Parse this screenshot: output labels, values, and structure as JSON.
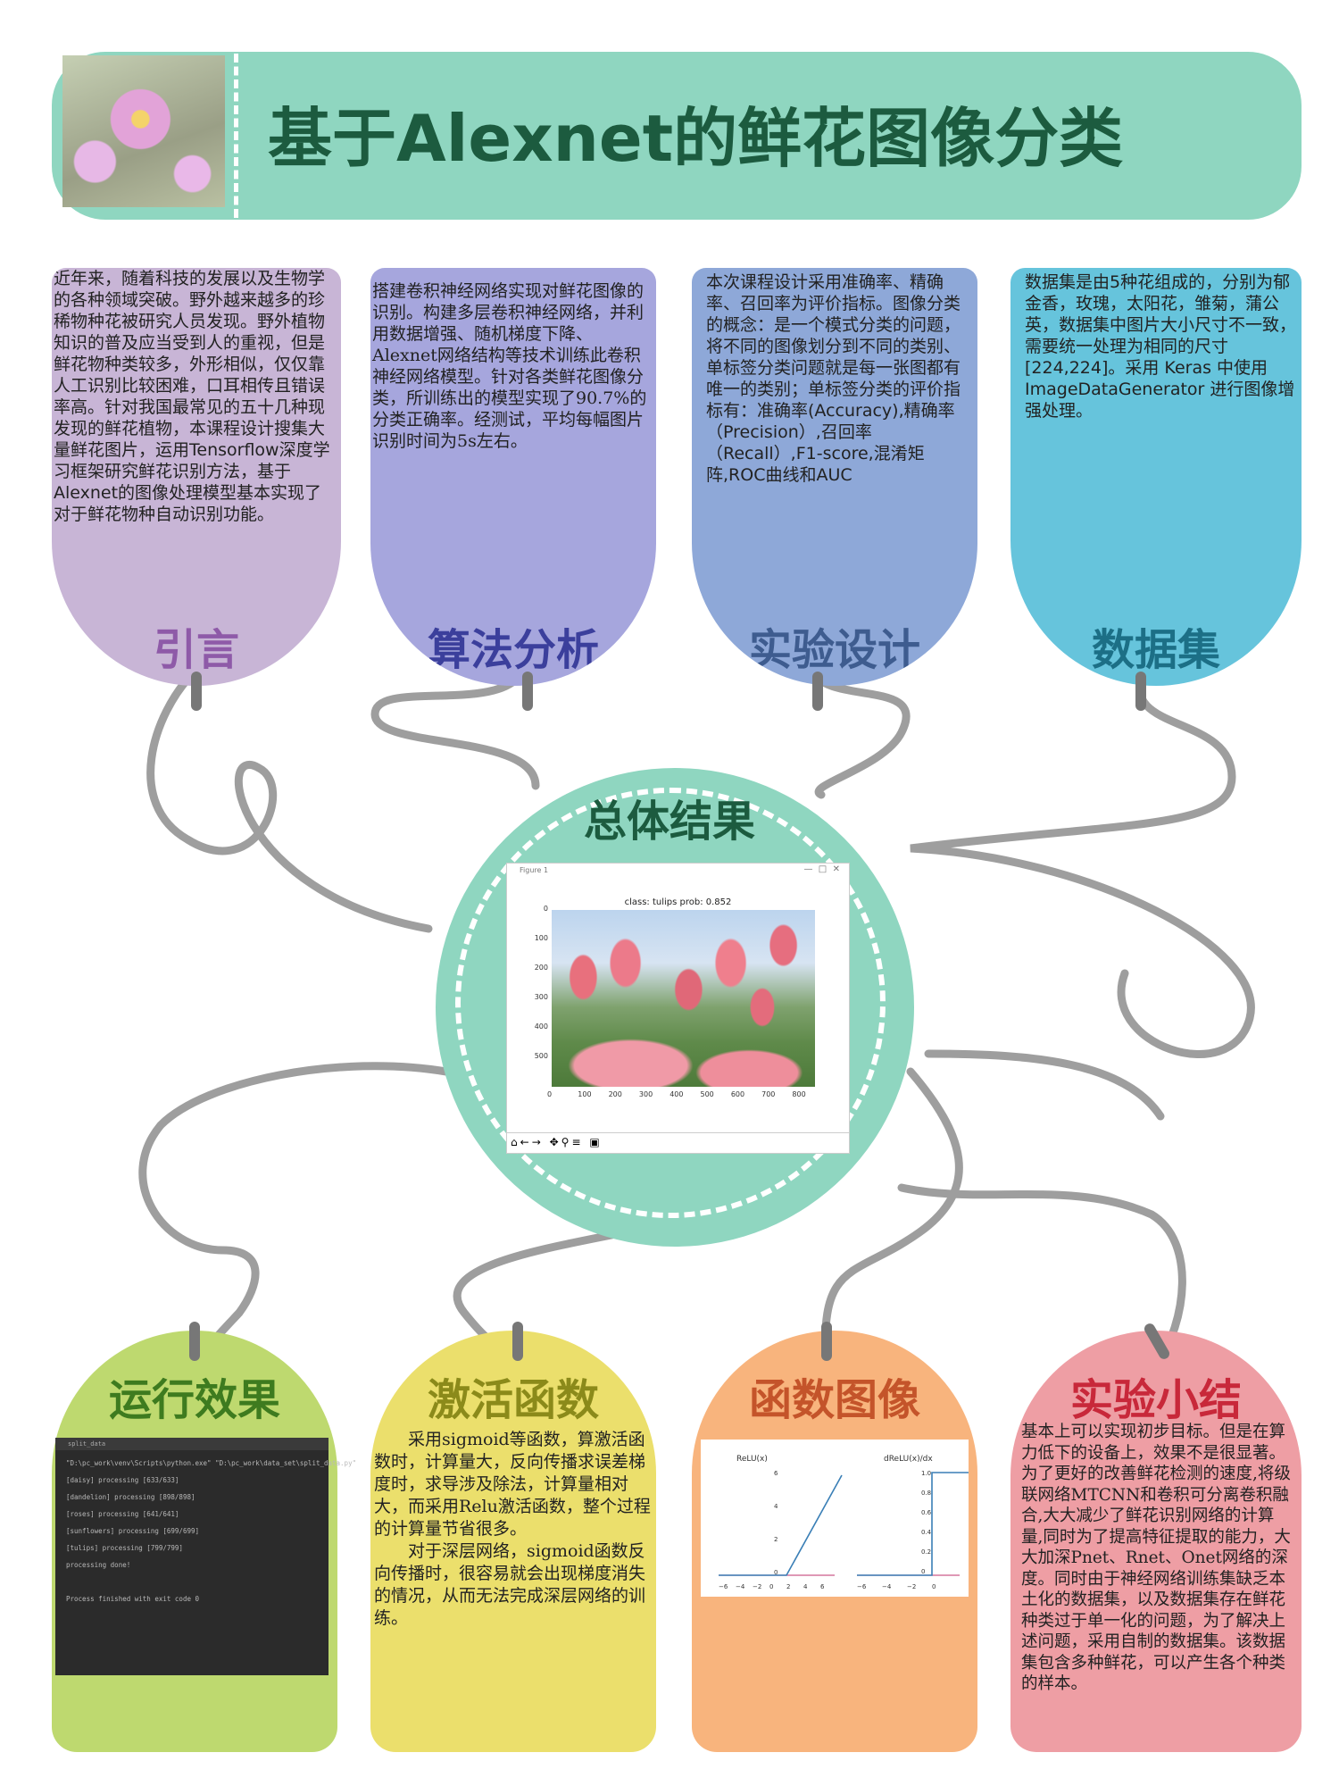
{
  "header": {
    "title": "基于Alexnet的鲜花图像分类"
  },
  "cards_top": [
    {
      "title": "引言",
      "text": "近年来，随着科技的发展以及生物学的各种领域突破。野外越来越多的珍稀物种花被研究人员发现。野外植物知识的普及应当受到人的重视，但是鲜花物种类较多，外形相似，仅仅靠人工识别比较困难，口耳相传且错误率高。针对我国最常见的五十几种现发现的鲜花植物，本课程设计搜集大量鲜花图片，运用Tensorflow深度学习框架研究鲜花识别方法，基于Alexnet的图像处理模型基本实现了对于鲜花物种自动识别功能。"
    },
    {
      "title": "算法分析",
      "text": "搭建卷积神经网络实现对鲜花图像的识别。构建多层卷积神经网络，并利用数据增强、随机梯度下降、Alexnet网络结构等技术训练此卷积神经网络模型。针对各类鲜花图像分类，所训练出的模型实现了90.7%的分类正确率。经测试，平均每幅图片识别时间为5s左右。"
    },
    {
      "title": "实验设计",
      "text": "本次课程设计采用准确率、精确率、召回率为评价指标。图像分类的概念：是一个模式分类的问题，将不同的图像划分到不同的类别、单标签分类问题就是每一张图都有唯一的类别；单标签分类的评价指标有：准确率(Accuracy),精确率（Precision）,召回率（Recall）,F1-score,混淆矩阵,ROC曲线和AUC"
    },
    {
      "title": "数据集",
      "text": "数据集是由5种花组成的，分别为郁金香，玫瑰，太阳花，雏菊，蒲公英，数据集中图片大小尺寸不一致，需要统一处理为相同的尺寸[224,224]。采用 Keras 中使用ImageDataGenerator 进行图像增强处理。"
    }
  ],
  "center": {
    "title": "总体结果",
    "figure_window": "Figure 1",
    "plot_title": "class: tulips   prob: 0.852",
    "y_ticks": [
      "0",
      "100",
      "200",
      "300",
      "400",
      "500"
    ],
    "x_ticks": [
      "0",
      "100",
      "200",
      "300",
      "400",
      "500",
      "600",
      "700",
      "800"
    ]
  },
  "cards_bottom": [
    {
      "title": "运行效果",
      "terminal": {
        "title": "split_data",
        "lines": [
          "\"D:\\pc_work\\venv\\Scripts\\python.exe\" \"D:\\pc_work\\data_set\\split_data.py\"",
          "[daisy] processing [633/633]",
          "[dandelion] processing [898/898]",
          "[roses] processing [641/641]",
          "[sunflowers] processing [699/699]",
          "[tulips] processing [799/799]",
          "processing done!",
          "",
          "Process finished with exit code 0"
        ]
      }
    },
    {
      "title": "激活函数",
      "paragraphs": [
        "采用sigmoid等函数，算激活函数时，计算量大，反向传播求误差梯度时，求导涉及除法，计算量相对大，而采用Relu激活函数，整个过程的计算量节省很多。",
        "对于深层网络，sigmoid函数反向传播时，很容易就会出现梯度消失的情况，从而无法完成深层网络的训练。"
      ]
    },
    {
      "title": "函数图像",
      "plot_left": {
        "title": "ReLU(x)",
        "y_ticks": [
          "6",
          "4",
          "2",
          "0"
        ],
        "x_ticks": [
          "−6",
          "−4",
          "−2",
          "0",
          "2",
          "4",
          "6"
        ]
      },
      "plot_right": {
        "title": "dReLU(x)/dx",
        "y_ticks": [
          "1.0",
          "0.8",
          "0.6",
          "0.4",
          "0.2",
          "0"
        ],
        "x_ticks": [
          "−6",
          "−4",
          "−2",
          "0"
        ]
      }
    },
    {
      "title": "实验小结",
      "text": "基本上可以实现初步目标。但是在算力低下的设备上，效果不是很显著。为了更好的改善鲜花检测的速度,将级联网络MTCNN和卷积可分离卷积融合,大大减少了鲜花识别网络的计算量,同时为了提高特征提取的能力，大大加深Pnet、Rnet、Onet网络的深度。同时由于神经网络训练集缺乏本土化的数据集，以及数据集存在鲜花种类过于单一化的问题，为了解决上述问题，采用自制的数据集。该数据集包含多种鲜花，可以产生各个种类的样本。"
    }
  ],
  "colors": {
    "header_bg": "#8fd6c0",
    "title_color": "#1c5b3f",
    "card1_bg": "#c8b5d6",
    "card1_title": "#8e5aa8",
    "card2_bg": "#a6a6dd",
    "card2_title": "#3b3f9c",
    "card3_bg": "#8ea8d8",
    "card3_title": "#3e5c8f",
    "card4_bg": "#66c4dc",
    "card4_title": "#1c6f86",
    "card5_bg": "#bed96f",
    "card5_title": "#3e7b1f",
    "card6_bg": "#ebdf6c",
    "card6_title": "#8b8a1a",
    "card7_bg": "#f8b47d",
    "card7_title": "#c4542a",
    "card8_bg": "#ee9ea4",
    "card8_title": "#c8283a",
    "string": "#9e9e9e"
  }
}
